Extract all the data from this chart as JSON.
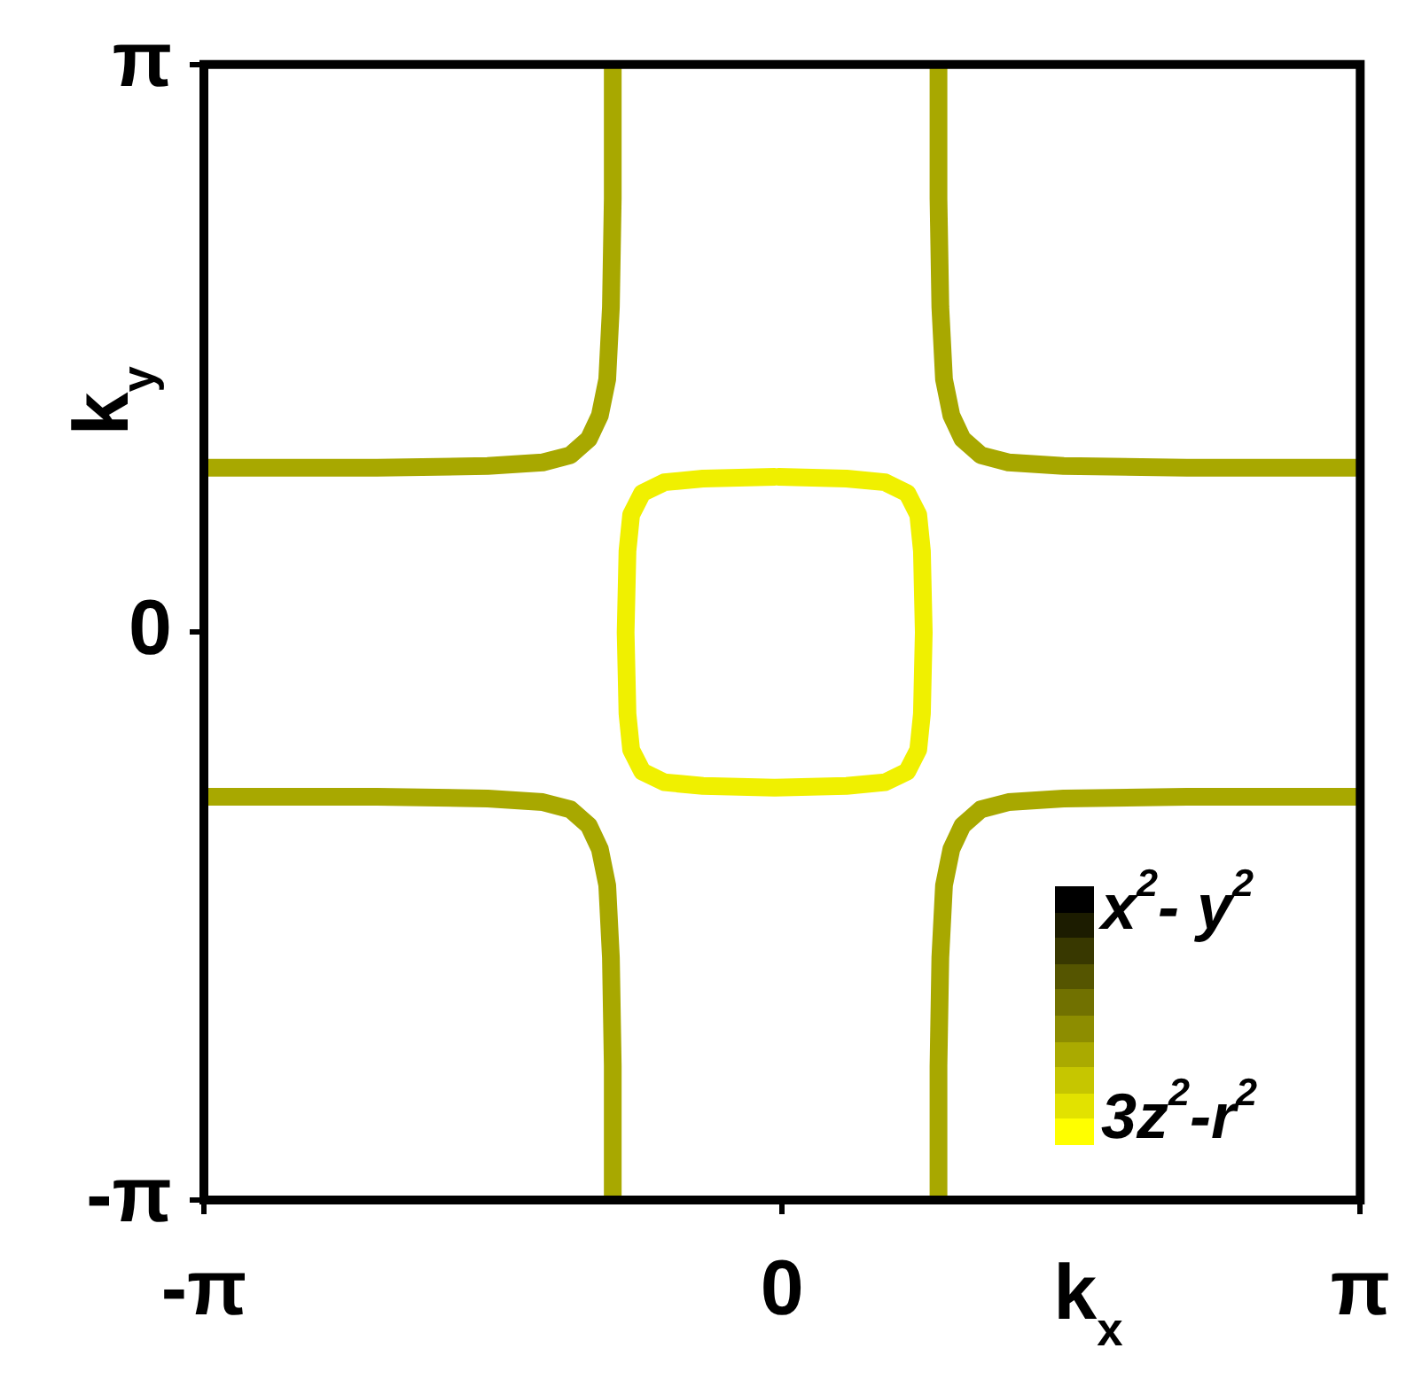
{
  "chart_data": {
    "type": "line",
    "xlabel": "k$_{x}$",
    "ylabel": "k$_{y}$",
    "grid": false,
    "xlim": [
      -3.1416,
      3.1416
    ],
    "ylim": [
      -3.1416,
      3.1416
    ],
    "xticks": [
      {
        "value": -3.1416,
        "label": "-π"
      },
      0,
      {
        "value": 3.1416,
        "label": "π"
      }
    ],
    "yticks": [
      {
        "value": -3.1416,
        "label": "-π"
      },
      0,
      {
        "value": 3.1416,
        "label": "π"
      }
    ],
    "annotations": [
      "x$^{2}$- y$^{2}$",
      "3z$^{2}$-r$^{2}$"
    ],
    "series": [
      {
        "color": "#a8a800",
        "x": [
          -0.92,
          -0.92,
          -0.93,
          -0.95,
          -0.99,
          -1.05,
          -1.15,
          -1.3,
          -1.6,
          -2.2,
          -3.14
        ],
        "values": [
          3.14,
          2.4,
          1.8,
          1.4,
          1.2,
          1.07,
          0.98,
          0.94,
          0.92,
          0.91,
          0.91
        ]
      },
      {
        "color": "#a8a800",
        "x": [
          0.85,
          0.85,
          0.86,
          0.88,
          0.92,
          0.98,
          1.08,
          1.23,
          1.53,
          2.2,
          3.14
        ],
        "values": [
          3.14,
          2.4,
          1.8,
          1.4,
          1.2,
          1.07,
          0.98,
          0.94,
          0.92,
          0.91,
          0.91
        ]
      },
      {
        "color": "#a8a800",
        "x": [
          -0.92,
          -0.92,
          -0.93,
          -0.95,
          -0.99,
          -1.05,
          -1.15,
          -1.3,
          -1.6,
          -2.2,
          -3.14
        ],
        "values": [
          -3.14,
          -2.4,
          -1.8,
          -1.4,
          -1.2,
          -1.07,
          -0.98,
          -0.94,
          -0.92,
          -0.91,
          -0.91
        ]
      },
      {
        "color": "#a8a800",
        "x": [
          0.85,
          0.85,
          0.86,
          0.88,
          0.92,
          0.98,
          1.08,
          1.23,
          1.53,
          2.2,
          3.14
        ],
        "values": [
          -3.14,
          -2.4,
          -1.8,
          -1.4,
          -1.2,
          -1.07,
          -0.98,
          -0.94,
          -0.92,
          -0.91,
          -0.91
        ]
      },
      {
        "color": "#f0f000",
        "x": [
          -0.02,
          0.35,
          0.56,
          0.68,
          0.74,
          0.76,
          0.77,
          0.76,
          0.74,
          0.68,
          0.56,
          0.35,
          -0.04,
          -0.43,
          -0.64,
          -0.76,
          -0.82,
          -0.84,
          -0.85,
          -0.84,
          -0.82,
          -0.76,
          -0.64,
          -0.43,
          -0.04
        ],
        "values": [
          0.86,
          0.85,
          0.83,
          0.77,
          0.65,
          0.45,
          0,
          -0.45,
          -0.65,
          -0.77,
          -0.83,
          -0.85,
          -0.86,
          -0.85,
          -0.83,
          -0.77,
          -0.65,
          -0.45,
          0,
          0.45,
          0.65,
          0.77,
          0.83,
          0.85,
          0.86
        ]
      }
    ]
  }
}
